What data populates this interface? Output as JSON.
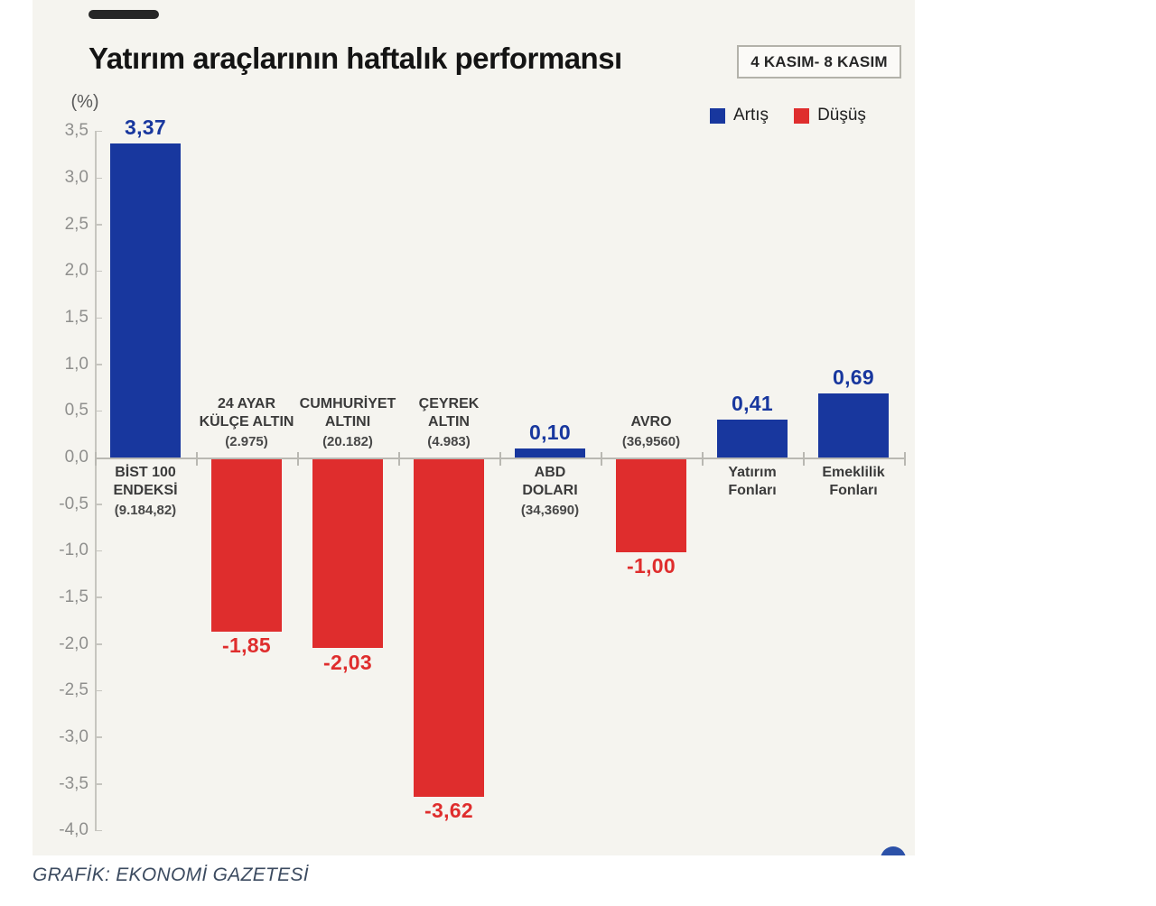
{
  "page": {
    "background": "#ffffff",
    "card_background": "#f5f4ef"
  },
  "header": {
    "title": "Yatırım araçlarının haftalık performansı",
    "date_badge": "4 KASIM- 8 KASIM"
  },
  "legend": {
    "increase_label": "Artış",
    "decrease_label": "Düşüş"
  },
  "colors": {
    "increase": "#18379e",
    "decrease": "#df2d2d"
  },
  "footer": {
    "credit": "GRAFİK: EKONOMİ GAZETESİ"
  },
  "chart_data": {
    "type": "bar",
    "title": "Yatırım araçlarının haftalık performansı",
    "period": "4 KASIM- 8 KASIM",
    "ylabel": "(%)",
    "ylim": [
      -4.0,
      3.5
    ],
    "ytick_step": 0.5,
    "yticks": [
      "3,5",
      "3,0",
      "2,5",
      "2,0",
      "1,5",
      "1,0",
      "0,5",
      "0,0",
      "-0,5",
      "-1,0",
      "-1,5",
      "-2,0",
      "-2,5",
      "-3,0",
      "-3,5",
      "-4,0"
    ],
    "grid": false,
    "legend_position": "top-right",
    "legend": [
      {
        "name": "Artış",
        "color": "#18379e"
      },
      {
        "name": "Düşüş",
        "color": "#df2d2d"
      }
    ],
    "categories": [
      {
        "name": "BİST 100 ENDEKSİ",
        "label_lines": [
          "BİST 100",
          "ENDEKSİ"
        ],
        "sublabel": "(9.184,82)",
        "value": 3.37,
        "value_label": "3,37",
        "direction": "increase"
      },
      {
        "name": "24 AYAR KÜLÇE ALTIN",
        "label_lines": [
          "24 AYAR",
          "KÜLÇE ALTIN"
        ],
        "sublabel": "(2.975)",
        "value": -1.85,
        "value_label": "-1,85",
        "direction": "decrease"
      },
      {
        "name": "CUMHURİYET ALTINI",
        "label_lines": [
          "CUMHURİYET",
          "ALTINI"
        ],
        "sublabel": "(20.182)",
        "value": -2.03,
        "value_label": "-2,03",
        "direction": "decrease"
      },
      {
        "name": "ÇEYREK ALTIN",
        "label_lines": [
          "ÇEYREK",
          "ALTIN"
        ],
        "sublabel": "(4.983)",
        "value": -3.62,
        "value_label": "-3,62",
        "direction": "decrease"
      },
      {
        "name": "ABD DOLARI",
        "label_lines": [
          "ABD",
          "DOLARI"
        ],
        "sublabel": "(34,3690)",
        "value": 0.1,
        "value_label": "0,10",
        "direction": "increase"
      },
      {
        "name": "AVRO",
        "label_lines": [
          "AVRO"
        ],
        "sublabel": "(36,9560)",
        "value": -1.0,
        "value_label": "-1,00",
        "direction": "decrease"
      },
      {
        "name": "Yatırım Fonları",
        "label_lines": [
          "Yatırım",
          "Fonları"
        ],
        "sublabel": "",
        "value": 0.41,
        "value_label": "0,41",
        "direction": "increase"
      },
      {
        "name": "Emeklilik Fonları",
        "label_lines": [
          "Emeklilik",
          "Fonları"
        ],
        "sublabel": "",
        "value": 0.69,
        "value_label": "0,69",
        "direction": "increase"
      }
    ]
  }
}
